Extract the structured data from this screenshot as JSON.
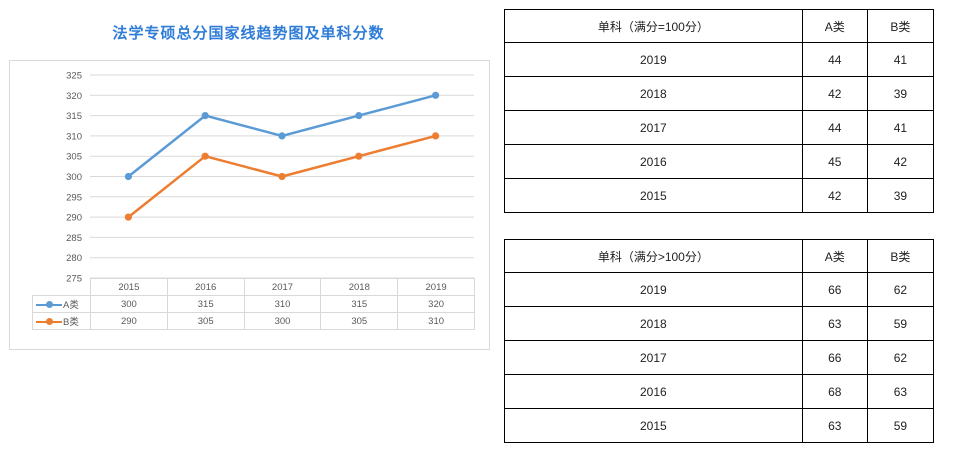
{
  "title": "法学专硕总分国家线趋势图及单科分数",
  "chart_data": {
    "type": "line",
    "categories": [
      "2015",
      "2016",
      "2017",
      "2018",
      "2019"
    ],
    "series": [
      {
        "name": "A类",
        "values": [
          300,
          315,
          310,
          315,
          320
        ],
        "color": "#5b9bd5"
      },
      {
        "name": "B类",
        "values": [
          290,
          305,
          300,
          305,
          310
        ],
        "color": "#ed7d31"
      }
    ],
    "yticks": [
      "325",
      "320",
      "315",
      "310",
      "305",
      "300",
      "295",
      "290",
      "285",
      "280",
      "275"
    ],
    "ylim": [
      275,
      325
    ],
    "grid": true,
    "legend": "data-table"
  },
  "table1": {
    "headers": [
      "单科（满分=100分）",
      "A类",
      "B类"
    ],
    "rows": [
      [
        "2019",
        "44",
        "41"
      ],
      [
        "2018",
        "42",
        "39"
      ],
      [
        "2017",
        "44",
        "41"
      ],
      [
        "2016",
        "45",
        "42"
      ],
      [
        "2015",
        "42",
        "39"
      ]
    ]
  },
  "table2": {
    "headers": [
      "单科（满分>100分）",
      "A类",
      "B类"
    ],
    "rows": [
      [
        "2019",
        "66",
        "62"
      ],
      [
        "2018",
        "63",
        "59"
      ],
      [
        "2017",
        "66",
        "62"
      ],
      [
        "2016",
        "68",
        "63"
      ],
      [
        "2015",
        "63",
        "59"
      ]
    ]
  }
}
